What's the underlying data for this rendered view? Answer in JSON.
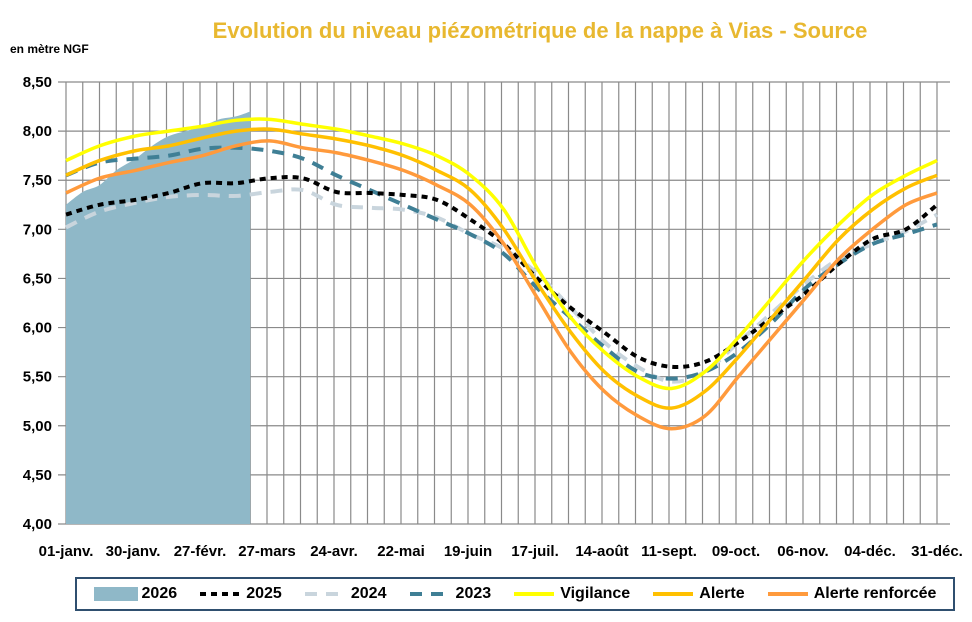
{
  "chart_data": {
    "type": "line",
    "title": "Evolution du niveau piézométrique de la nappe à Vias  - Source",
    "ylabel": "en mètre NGF",
    "ylim": [
      4.0,
      8.5
    ],
    "yticks": [
      "4,00",
      "4,50",
      "5,00",
      "5,50",
      "6,00",
      "6,50",
      "7,00",
      "7,50",
      "8,00",
      "8,50"
    ],
    "xticks": [
      "01-janv.",
      "30-janv.",
      "27-févr.",
      "27-mars",
      "24-avr.",
      "22-mai",
      "19-juin",
      "17-juil.",
      "14-août",
      "11-sept.",
      "09-oct.",
      "06-nov.",
      "04-déc.",
      "31-déc."
    ],
    "grid": true,
    "legend_position": "bottom",
    "x": [
      "01-01",
      "01-15",
      "01-30",
      "02-13",
      "02-27",
      "03-13",
      "03-27",
      "04-10",
      "04-24",
      "05-08",
      "05-22",
      "06-05",
      "06-19",
      "07-03",
      "07-17",
      "07-31",
      "08-14",
      "08-28",
      "09-11",
      "09-25",
      "10-09",
      "10-23",
      "11-06",
      "11-20",
      "12-04",
      "12-18",
      "12-31"
    ],
    "area": {
      "name": "2026",
      "color": "#8FB8C8",
      "x": [
        "01-01",
        "01-08",
        "01-15",
        "01-22",
        "01-30",
        "02-06",
        "02-13",
        "02-20",
        "02-27",
        "03-06",
        "03-13",
        "03-19"
      ],
      "values": [
        7.25,
        7.38,
        7.45,
        7.6,
        7.72,
        7.85,
        7.95,
        8.0,
        8.05,
        8.12,
        8.15,
        8.2
      ]
    },
    "series": [
      {
        "name": "2025",
        "color": "#000000",
        "dash": "dense",
        "values": [
          7.15,
          7.25,
          7.3,
          7.37,
          7.47,
          7.47,
          7.52,
          7.52,
          7.38,
          7.37,
          7.35,
          7.3,
          7.1,
          6.85,
          6.5,
          6.2,
          5.95,
          5.7,
          5.6,
          5.65,
          5.85,
          6.1,
          6.35,
          6.65,
          6.9,
          7.0,
          7.25
        ]
      },
      {
        "name": "2024",
        "color": "#C9D5DD",
        "dash": "long",
        "values": [
          7.02,
          7.18,
          7.27,
          7.33,
          7.35,
          7.34,
          7.38,
          7.4,
          7.25,
          7.22,
          7.2,
          7.12,
          6.95,
          6.8,
          6.55,
          6.2,
          5.85,
          5.6,
          5.45,
          5.55,
          5.85,
          6.15,
          6.45,
          6.7,
          6.85,
          6.98,
          7.15
        ]
      },
      {
        "name": "2023",
        "color": "#3F7F95",
        "dash": "long",
        "values": [
          7.55,
          7.68,
          7.72,
          7.75,
          7.82,
          7.83,
          7.8,
          7.72,
          7.55,
          7.4,
          7.25,
          7.1,
          6.95,
          6.75,
          6.4,
          6.1,
          5.8,
          5.55,
          5.48,
          5.55,
          5.75,
          6.05,
          6.4,
          6.65,
          6.85,
          6.95,
          7.05
        ]
      },
      {
        "name": "Vigilance",
        "color": "#FFFF00",
        "dash": "solid",
        "values": [
          7.7,
          7.85,
          7.95,
          8.0,
          8.05,
          8.11,
          8.12,
          8.07,
          8.02,
          7.95,
          7.87,
          7.75,
          7.55,
          7.2,
          6.6,
          6.1,
          5.75,
          5.5,
          5.38,
          5.55,
          5.9,
          6.3,
          6.7,
          7.05,
          7.35,
          7.55,
          7.7
        ]
      },
      {
        "name": "Alerte",
        "color": "#FFC000",
        "dash": "solid",
        "values": [
          7.55,
          7.7,
          7.8,
          7.85,
          7.93,
          8.0,
          8.02,
          7.97,
          7.92,
          7.85,
          7.75,
          7.6,
          7.4,
          7.0,
          6.45,
          5.95,
          5.55,
          5.3,
          5.18,
          5.35,
          5.7,
          6.1,
          6.5,
          6.9,
          7.2,
          7.42,
          7.55
        ]
      },
      {
        "name": "Alerte renforcée",
        "color": "#FF9A3C",
        "dash": "solid",
        "values": [
          7.37,
          7.52,
          7.6,
          7.68,
          7.75,
          7.85,
          7.9,
          7.83,
          7.78,
          7.7,
          7.6,
          7.45,
          7.25,
          6.85,
          6.3,
          5.75,
          5.35,
          5.1,
          4.97,
          5.1,
          5.5,
          5.9,
          6.3,
          6.7,
          7.0,
          7.25,
          7.37
        ]
      }
    ]
  }
}
